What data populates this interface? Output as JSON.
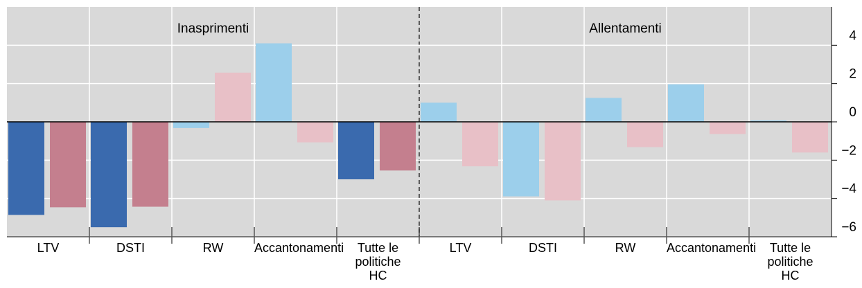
{
  "chart_data": {
    "type": "bar",
    "annotations": [
      "Inasprimenti",
      "Allentamenti"
    ],
    "categories": [
      "LTV",
      "DSTI",
      "RW",
      "Accantonamenti",
      "Tutte le politiche HC",
      "LTV",
      "DSTI",
      "RW",
      "Accantonamenti",
      "Tutte le politiche HC"
    ],
    "series": [
      {
        "values": [
          -4.86,
          -5.5,
          -0.32,
          4.1,
          -3.0,
          1.0,
          -3.89,
          1.25,
          1.96,
          0.07
        ],
        "colors": [
          "#3a6aae",
          "#3a6aae",
          "#9ccfeb",
          "#9ccfeb",
          "#3a6aae",
          "#9ccfeb",
          "#9ccfeb",
          "#9ccfeb",
          "#9ccfeb",
          "#9ccfeb"
        ]
      },
      {
        "values": [
          -4.46,
          -4.43,
          2.57,
          -1.07,
          -2.54,
          -2.32,
          -4.1,
          -1.32,
          -0.64,
          -1.6
        ],
        "colors": [
          "#c47f8e",
          "#c47f8e",
          "#e8c0c7",
          "#e8c0c7",
          "#c47f8e",
          "#e8c0c7",
          "#e8c0c7",
          "#e8c0c7",
          "#e8c0c7",
          "#e8c0c7"
        ]
      }
    ],
    "ylim": [
      -6,
      6
    ],
    "yticks": [
      4,
      2,
      0,
      {
        "value": -2,
        "label": "−2"
      },
      {
        "value": -4,
        "label": "−4"
      },
      {
        "value": -6,
        "label": "−6"
      }
    ],
    "grid": true
  }
}
